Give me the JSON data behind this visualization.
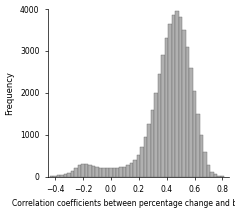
{
  "title": "",
  "xlabel": "Correlation coefficients between percentage change and baseline",
  "ylabel": "Frequency",
  "xlim": [
    -0.45,
    0.85
  ],
  "ylim": [
    0,
    4000
  ],
  "yticks": [
    0,
    1000,
    2000,
    3000,
    4000
  ],
  "xticks": [
    -0.4,
    -0.2,
    0.0,
    0.2,
    0.4,
    0.6,
    0.8
  ],
  "bar_color": "#b0b0b0",
  "bar_edge_color": "#666666",
  "background_color": "#ffffff",
  "bin_centers": [
    -0.425,
    -0.4,
    -0.375,
    -0.35,
    -0.325,
    -0.3,
    -0.275,
    -0.25,
    -0.225,
    -0.2,
    -0.175,
    -0.15,
    -0.125,
    -0.1,
    -0.075,
    -0.05,
    -0.025,
    0.0,
    0.025,
    0.05,
    0.075,
    0.1,
    0.125,
    0.15,
    0.175,
    0.2,
    0.225,
    0.25,
    0.275,
    0.3,
    0.325,
    0.35,
    0.375,
    0.4,
    0.425,
    0.45,
    0.475,
    0.5,
    0.525,
    0.55,
    0.575,
    0.6,
    0.625,
    0.65,
    0.675,
    0.7,
    0.725,
    0.75,
    0.775,
    0.8
  ],
  "frequencies": [
    20,
    25,
    30,
    40,
    60,
    90,
    140,
    200,
    280,
    310,
    290,
    270,
    250,
    230,
    210,
    200,
    195,
    200,
    205,
    210,
    220,
    240,
    270,
    320,
    400,
    520,
    700,
    950,
    1250,
    1600,
    2000,
    2450,
    2900,
    3300,
    3650,
    3850,
    3950,
    3800,
    3500,
    3100,
    2600,
    2050,
    1500,
    1000,
    580,
    280,
    120,
    50,
    15,
    5
  ],
  "bin_width": 0.025
}
